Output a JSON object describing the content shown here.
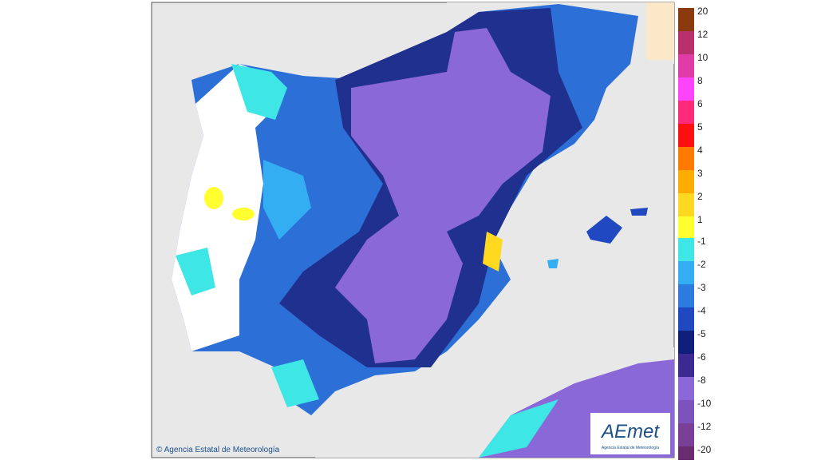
{
  "map": {
    "copyright": "© Agencia Estatal de Meteorología",
    "logo": {
      "title": "AEmet",
      "subtitle": "Agencia Estatal de Meteorología"
    },
    "legend": {
      "positive": [
        {
          "label": 20,
          "color": "#8b3a10"
        },
        {
          "label": 12,
          "color": "#b8306c"
        },
        {
          "label": 10,
          "color": "#e03ca8"
        },
        {
          "label": 8,
          "color": "#ff44ff"
        },
        {
          "label": 6,
          "color": "#ff2a7a"
        },
        {
          "label": 5,
          "color": "#ff1010"
        },
        {
          "label": 4,
          "color": "#ff7a00"
        },
        {
          "label": 3,
          "color": "#ffac00"
        },
        {
          "label": 2,
          "color": "#ffd820"
        },
        {
          "label": 1,
          "color": "#ffff30"
        }
      ],
      "negative": [
        {
          "label": -1,
          "color": "#3ee6e6"
        },
        {
          "label": -2,
          "color": "#34aef2"
        },
        {
          "label": -3,
          "color": "#2c7ce0"
        },
        {
          "label": -4,
          "color": "#2048c0"
        },
        {
          "label": -5,
          "color": "#10207a"
        },
        {
          "label": -6,
          "color": "#3c2a90"
        },
        {
          "label": -8,
          "color": "#8a68d8"
        },
        {
          "label": -10,
          "color": "#7c52bc"
        },
        {
          "label": -12,
          "color": "#7a3f96"
        },
        {
          "label": -20,
          "color": "#6a2c70"
        }
      ]
    }
  }
}
